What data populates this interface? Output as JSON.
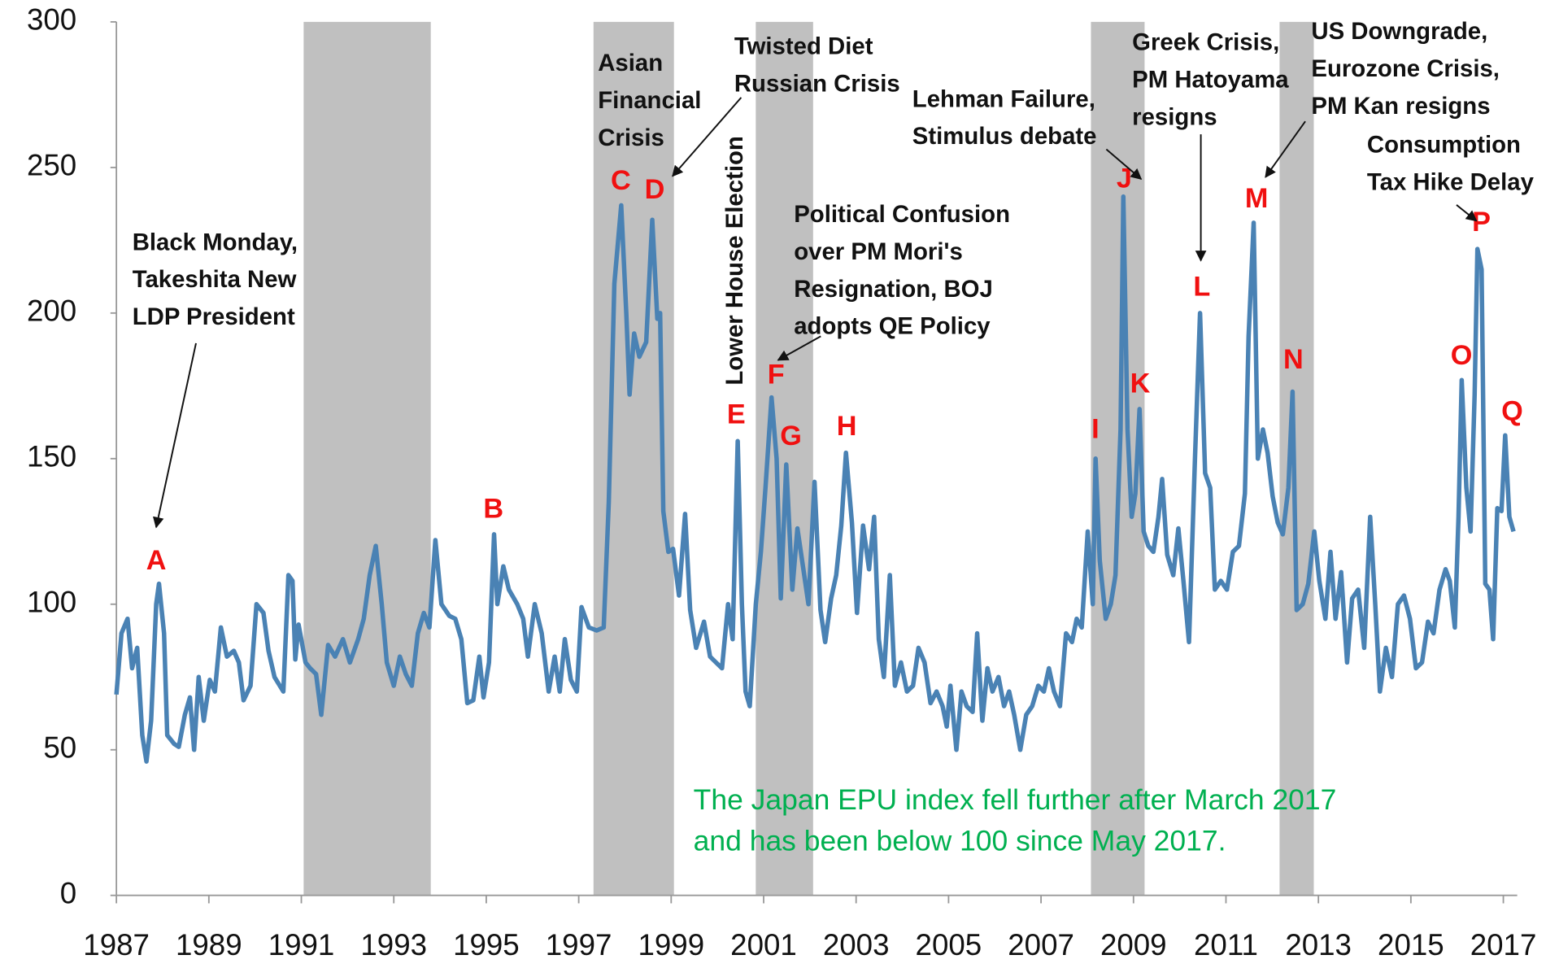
{
  "chart_data": {
    "type": "line",
    "color": "#4a82b4",
    "shade_color": "#c0c0c0",
    "xlim": [
      1987,
      2017.3
    ],
    "xticks": [
      1987,
      1989,
      1991,
      1993,
      1995,
      1997,
      1999,
      2001,
      2003,
      2005,
      2007,
      2009,
      2011,
      2013,
      2015,
      2017
    ],
    "ylim": [
      0,
      300
    ],
    "yticks": [
      0,
      50,
      100,
      150,
      200,
      250,
      300
    ],
    "grid": false,
    "shaded_periods": [
      [
        1991.05,
        1993.8
      ],
      [
        1997.32,
        1999.06
      ],
      [
        2000.83,
        2002.07
      ],
      [
        2008.08,
        2009.24
      ],
      [
        2012.16,
        2012.9
      ]
    ],
    "x": [
      1987.0,
      1987.11,
      1987.24,
      1987.34,
      1987.45,
      1987.56,
      1987.65,
      1987.75,
      1987.86,
      1987.92,
      1988.03,
      1988.1,
      1988.25,
      1988.35,
      1988.48,
      1988.59,
      1988.68,
      1988.78,
      1988.89,
      1989.02,
      1989.13,
      1989.26,
      1989.39,
      1989.54,
      1989.65,
      1989.75,
      1989.9,
      1990.03,
      1990.18,
      1990.29,
      1990.42,
      1990.61,
      1990.72,
      1990.81,
      1990.87,
      1990.94,
      1991.09,
      1991.19,
      1991.32,
      1991.43,
      1991.58,
      1991.73,
      1991.9,
      1992.05,
      1992.23,
      1992.35,
      1992.48,
      1992.61,
      1992.74,
      1992.85,
      1993.0,
      1993.13,
      1993.26,
      1993.39,
      1993.52,
      1993.65,
      1993.77,
      1993.9,
      1994.03,
      1994.2,
      1994.33,
      1994.46,
      1994.59,
      1994.72,
      1994.85,
      1994.94,
      1995.06,
      1995.17,
      1995.24,
      1995.37,
      1995.49,
      1995.67,
      1995.8,
      1995.9,
      1996.05,
      1996.2,
      1996.35,
      1996.48,
      1996.59,
      1996.7,
      1996.83,
      1996.96,
      1997.06,
      1997.22,
      1997.39,
      1997.54,
      1997.65,
      1997.77,
      1997.92,
      1998.03,
      1998.1,
      1998.2,
      1998.31,
      1998.46,
      1998.59,
      1998.7,
      1998.76,
      1998.83,
      1998.94,
      1999.04,
      1999.17,
      1999.3,
      1999.41,
      1999.54,
      1999.71,
      1999.84,
      1999.97,
      2000.1,
      2000.23,
      2000.33,
      2000.44,
      2000.53,
      2000.61,
      2000.7,
      2000.83,
      2000.94,
      2001.04,
      2001.17,
      2001.28,
      2001.37,
      2001.49,
      2001.62,
      2001.73,
      2001.86,
      2001.97,
      2002.1,
      2002.23,
      2002.33,
      2002.46,
      2002.57,
      2002.68,
      2002.78,
      2002.91,
      2003.02,
      2003.15,
      2003.28,
      2003.39,
      2003.49,
      2003.6,
      2003.73,
      2003.84,
      2003.97,
      2004.1,
      2004.23,
      2004.35,
      2004.48,
      2004.61,
      2004.74,
      2004.87,
      2004.96,
      2005.04,
      2005.17,
      2005.28,
      2005.39,
      2005.52,
      2005.62,
      2005.73,
      2005.84,
      2005.95,
      2006.08,
      2006.2,
      2006.31,
      2006.42,
      2006.55,
      2006.68,
      2006.81,
      2006.94,
      2007.06,
      2007.17,
      2007.28,
      2007.41,
      2007.54,
      2007.67,
      2007.77,
      2007.88,
      2008.01,
      2008.12,
      2008.18,
      2008.27,
      2008.4,
      2008.51,
      2008.61,
      2008.72,
      2008.78,
      2008.87,
      2008.96,
      2009.04,
      2009.13,
      2009.22,
      2009.32,
      2009.43,
      2009.54,
      2009.62,
      2009.73,
      2009.86,
      2009.97,
      2010.08,
      2010.2,
      2010.33,
      2010.44,
      2010.55,
      2010.66,
      2010.76,
      2010.89,
      2011.02,
      2011.15,
      2011.28,
      2011.41,
      2011.49,
      2011.6,
      2011.69,
      2011.8,
      2011.9,
      2012.01,
      2012.12,
      2012.23,
      2012.35,
      2012.44,
      2012.53,
      2012.66,
      2012.78,
      2012.91,
      2013.02,
      2013.15,
      2013.26,
      2013.37,
      2013.49,
      2013.62,
      2013.73,
      2013.86,
      2013.99,
      2014.12,
      2014.23,
      2014.33,
      2014.46,
      2014.59,
      2014.72,
      2014.85,
      2014.98,
      2015.11,
      2015.24,
      2015.37,
      2015.49,
      2015.62,
      2015.75,
      2015.84,
      2015.95,
      2016.03,
      2016.1,
      2016.2,
      2016.29,
      2016.38,
      2016.44,
      2016.53,
      2016.61,
      2016.7,
      2016.78,
      2016.87,
      2016.96,
      2017.04,
      2017.13,
      2017.22
    ],
    "values": [
      69,
      90,
      95,
      78,
      85,
      55,
      46,
      60,
      100,
      107,
      90,
      55,
      52,
      51,
      62,
      68,
      50,
      75,
      60,
      74,
      70,
      92,
      82,
      84,
      80,
      67,
      72,
      100,
      97,
      84,
      75,
      70,
      110,
      108,
      81,
      93,
      80,
      78,
      76,
      62,
      86,
      82,
      88,
      80,
      88,
      95,
      110,
      120,
      100,
      80,
      72,
      82,
      76,
      72,
      90,
      97,
      92,
      122,
      100,
      96,
      95,
      88,
      66,
      67,
      82,
      68,
      80,
      124,
      100,
      113,
      105,
      100,
      95,
      82,
      100,
      90,
      70,
      82,
      70,
      88,
      74,
      70,
      99,
      92,
      91,
      92,
      135,
      210,
      237,
      200,
      172,
      193,
      185,
      190,
      232,
      198,
      200,
      132,
      118,
      119,
      103,
      131,
      98,
      85,
      94,
      82,
      80,
      78,
      100,
      88,
      156,
      100,
      70,
      65,
      100,
      118,
      140,
      171,
      150,
      102,
      148,
      105,
      126,
      112,
      100,
      142,
      98,
      87,
      102,
      110,
      127,
      152,
      128,
      97,
      127,
      112,
      130,
      88,
      75,
      110,
      72,
      80,
      70,
      72,
      85,
      80,
      66,
      70,
      65,
      58,
      72,
      50,
      70,
      65,
      63,
      90,
      60,
      78,
      70,
      75,
      65,
      70,
      62,
      50,
      62,
      65,
      72,
      70,
      78,
      70,
      65,
      90,
      87,
      95,
      92,
      125,
      100,
      150,
      115,
      95,
      100,
      110,
      160,
      240,
      160,
      130,
      138,
      167,
      125,
      120,
      118,
      130,
      143,
      117,
      110,
      126,
      108,
      87,
      150,
      200,
      145,
      140,
      105,
      108,
      105,
      118,
      120,
      138,
      192,
      231,
      150,
      160,
      152,
      137,
      128,
      124,
      140,
      173,
      98,
      100,
      107,
      125,
      108,
      95,
      118,
      95,
      111,
      80,
      102,
      105,
      85,
      130,
      100,
      70,
      85,
      75,
      100,
      103,
      95,
      78,
      80,
      94,
      90,
      105,
      112,
      108,
      92,
      130,
      177,
      140,
      125,
      172,
      222,
      215,
      107,
      105,
      88,
      133,
      132,
      158,
      130,
      125
    ],
    "annotations": [
      {
        "letter": "A",
        "label": [
          "Black Monday,",
          "Takeshita New",
          "LDP President"
        ]
      },
      {
        "letter": "B"
      },
      {
        "letter": "C",
        "label": [
          "Asian",
          "Financial",
          "Crisis"
        ]
      },
      {
        "letter": "D",
        "label": [
          "Twisted Diet",
          "Russian Crisis"
        ]
      },
      {
        "letter": "E",
        "label": [
          "Lower House Election"
        ]
      },
      {
        "letter": "F",
        "label": [
          "Political Confusion",
          "over PM Mori's",
          "Resignation, BOJ",
          "adopts QE Policy"
        ]
      },
      {
        "letter": "G"
      },
      {
        "letter": "H"
      },
      {
        "letter": "I"
      },
      {
        "letter": "J",
        "label": [
          "Lehman Failure,",
          "Stimulus debate"
        ]
      },
      {
        "letter": "K"
      },
      {
        "letter": "L",
        "label": [
          "Greek Crisis,",
          "PM Hatoyama",
          "resigns"
        ]
      },
      {
        "letter": "M",
        "label": [
          "US Downgrade,",
          "Eurozone Crisis,",
          "PM Kan resigns"
        ]
      },
      {
        "letter": "N"
      },
      {
        "letter": "O"
      },
      {
        "letter": "P",
        "label": [
          "Consumption",
          "Tax Hike Delay"
        ]
      },
      {
        "letter": "Q"
      }
    ],
    "note": [
      "The Japan EPU index fell further after March 2017",
      "and has been below 100 since May 2017."
    ]
  }
}
